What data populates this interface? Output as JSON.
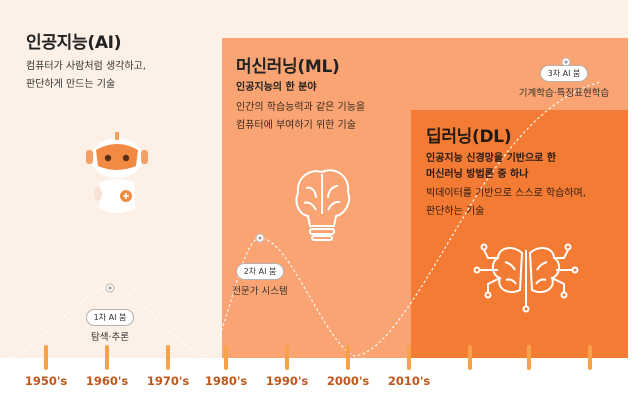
{
  "eras": {
    "ai": {
      "title": "인공지능(AI)",
      "desc_line1": "컴퓨터가 사람처럼 생각하고,",
      "desc_line2": "판단하게 만드는 기술"
    },
    "ml": {
      "title": "머신러닝(ML)",
      "subtitle": "인공지능의 한 분야",
      "desc_line1": "인간의 학습능력과 같은 기능을",
      "desc_line2": "컴퓨터에 부여하기 위한 기술"
    },
    "dl": {
      "title": "딥러닝(DL)",
      "subtitle_line1": "인공지능 신경망을 기반으로 한",
      "subtitle_line2": "머신러닝 방법론 중 하나",
      "desc_line1": "빅데이터를 기반으로 스스로 학습하며,",
      "desc_line2": "판단하는 기술"
    }
  },
  "booms": [
    {
      "label": "1차 AI 붐",
      "caption": "탐색·추론"
    },
    {
      "label": "2차 AI 붐",
      "caption": "전문가 시스템"
    },
    {
      "label": "3차 AI 붐",
      "caption": "기계학습·특징표현학습"
    }
  ],
  "timeline": {
    "years": [
      "1950's",
      "1960's",
      "1970's",
      "1980's",
      "1990's",
      "2000's",
      "2010's"
    ],
    "extra_ticks": 3
  },
  "colors": {
    "ai_panel": "#fdf0e6",
    "ml_panel": "#f9a472",
    "dl_panel": "#f47b33",
    "tick": "#f7a24a",
    "year_text": "#c0561a",
    "curve": "#ffffff"
  },
  "icons": {
    "ai": "robot-icon",
    "ml": "brain-bulb-icon",
    "dl": "circuit-brain-icon"
  }
}
